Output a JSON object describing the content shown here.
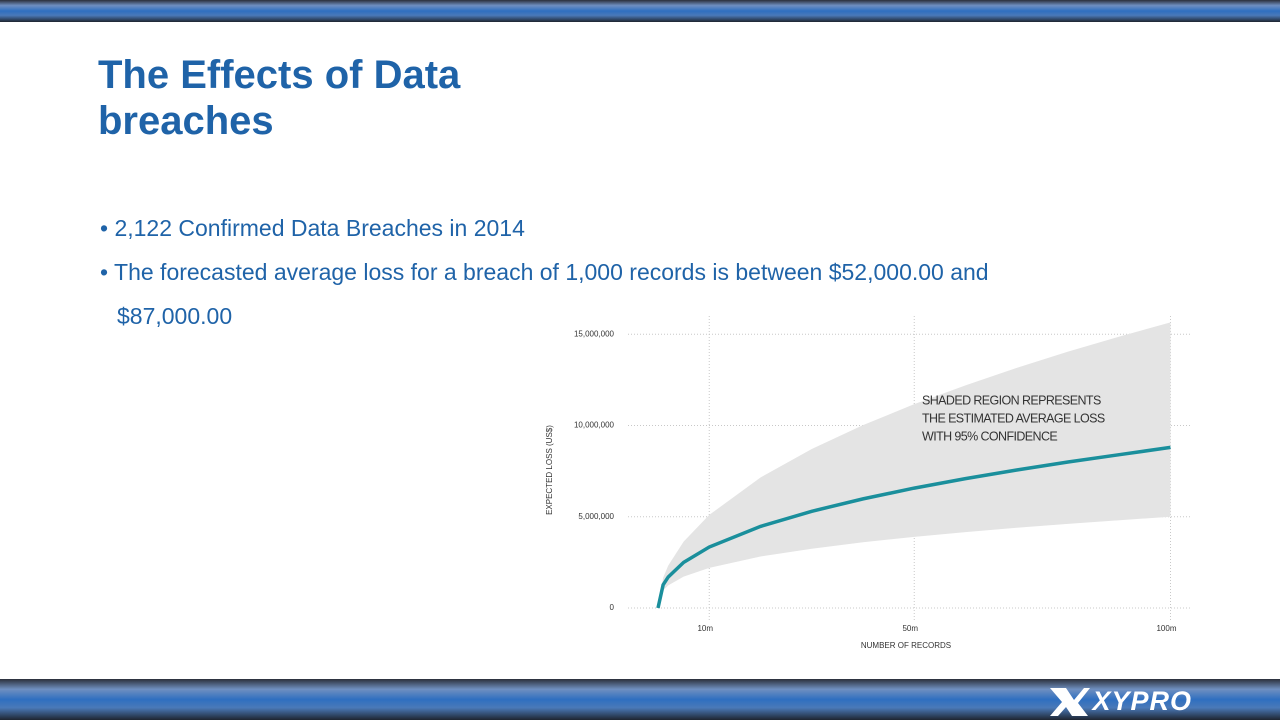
{
  "header": {
    "title": "The Effects of Data breaches"
  },
  "bullets": [
    "2,122 Confirmed Data Breaches in 2014",
    "The forecasted average loss for a breach of 1,000 records is between $52,000.00 and $87,000.00"
  ],
  "footer": {
    "logo": "XYPRO"
  },
  "chart_data": {
    "type": "area-band-line",
    "x_label": "NUMBER OF RECORDS",
    "y_label": "EXPECTED LOSS (US$)",
    "annotation": [
      "SHADED REGION REPRESENTS",
      "THE ESTIMATED AVERAGE LOSS",
      "WITH 95% CONFIDENCE"
    ],
    "x": [
      0,
      1,
      2,
      5,
      10,
      20,
      30,
      40,
      50,
      60,
      70,
      80,
      90,
      100
    ],
    "line": {
      "color": "#1a8f9c",
      "values": [
        0,
        1270000,
        1700000,
        2500000,
        3340000,
        4470000,
        5300000,
        5980000,
        6570000,
        7090000,
        7560000,
        8000000,
        8400000,
        8800000
      ]
    },
    "band": {
      "color": "#e4e4e4",
      "upper": [
        0,
        1660000,
        2330000,
        3640000,
        5100000,
        7150000,
        8710000,
        10020000,
        11170000,
        12200000,
        13160000,
        14050000,
        14870000,
        15650000
      ],
      "lower": [
        0,
        970000,
        1240000,
        1720000,
        2200000,
        2820000,
        3250000,
        3600000,
        3900000,
        4160000,
        4400000,
        4610000,
        4810000,
        5000000
      ]
    },
    "xlim": [
      0,
      104
    ],
    "ylim": [
      0,
      16000000
    ],
    "xticks": [
      {
        "value": 10,
        "label": "10m"
      },
      {
        "value": 50,
        "label": "50m"
      },
      {
        "value": 100,
        "label": "100m"
      }
    ],
    "yticks": [
      0,
      {
        "value": 5000000,
        "label": "5,000,000"
      },
      {
        "value": 10000000,
        "label": "10,000,000"
      },
      {
        "value": 15000000,
        "label": "15,000,000"
      }
    ],
    "grid": true
  }
}
